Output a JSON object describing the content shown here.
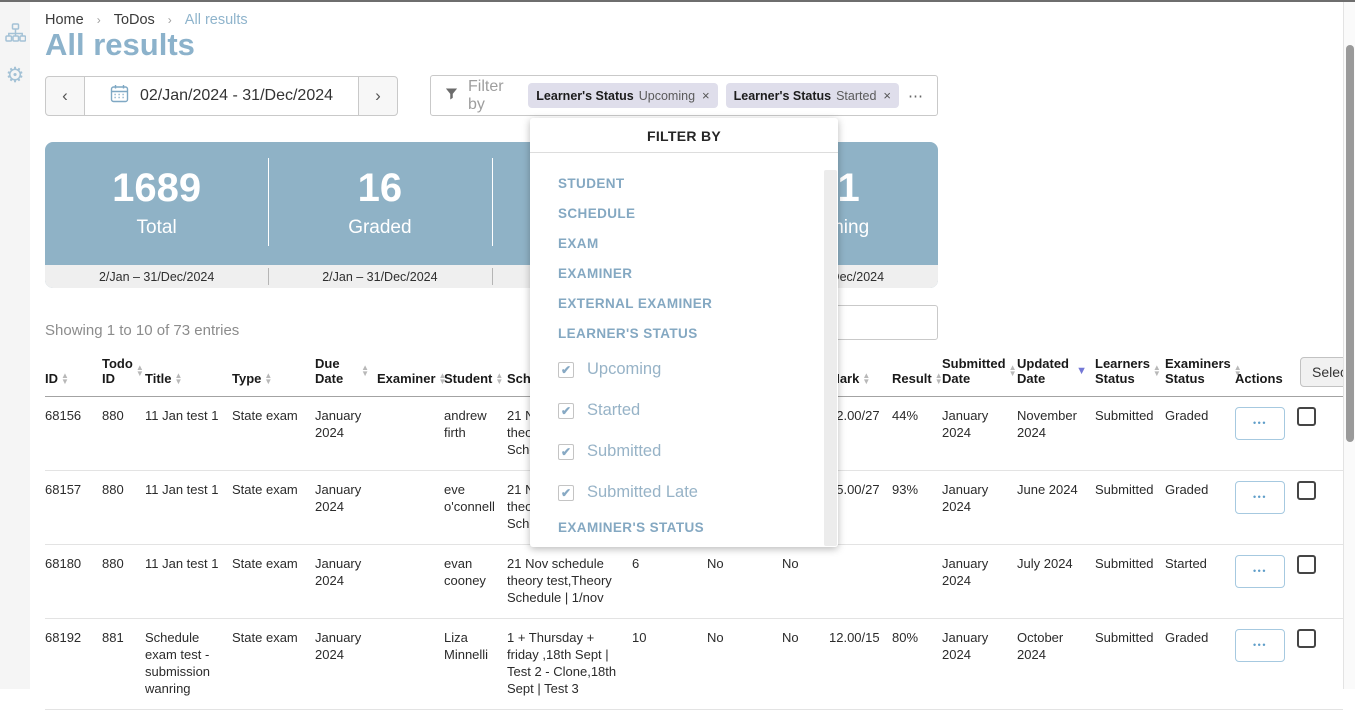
{
  "window": {
    "title": "All results"
  },
  "icons": {
    "prev": "‹",
    "next": "›",
    "breadcrumb_sep": "›",
    "remove": "×",
    "more": "⋯",
    "check": "✔",
    "row_actions": "•••",
    "sort_asc": "▲",
    "sort_desc": "▼",
    "gear": "⚙"
  },
  "sidebar": {
    "items": [
      {
        "icon": "sitemap-icon"
      },
      {
        "icon": "gear-icon"
      }
    ]
  },
  "breadcrumb": {
    "items": [
      "Home",
      "ToDos",
      "All results"
    ]
  },
  "header": {
    "title": "All results"
  },
  "toolbar": {
    "date_range": "02/Jan/2024 - 31/Dec/2024",
    "filter_label": "Filter by",
    "chips": [
      {
        "field": "Learner's Status",
        "value": "Upcoming"
      },
      {
        "field": "Learner's Status",
        "value": "Started"
      }
    ]
  },
  "stats": {
    "panels": [
      {
        "value": "1689",
        "label": "Total",
        "range": "2/Jan – 31/Dec/2024"
      },
      {
        "value": "16",
        "label": "Graded",
        "range": "2/Jan – 31/Dec/2024"
      },
      {
        "value": "",
        "label": "",
        "range": ""
      },
      {
        "value": "141",
        "label": "Upcoming",
        "range": "2/Jan – 31/Dec/2024"
      }
    ]
  },
  "filter_dropdown": {
    "title": "FILTER BY",
    "categories": [
      "STUDENT",
      "SCHEDULE",
      "EXAM",
      "EXAMINER",
      "EXTERNAL EXAMINER",
      "LEARNER'S STATUS"
    ],
    "learner_status_options": [
      {
        "label": "Upcoming",
        "checked": true
      },
      {
        "label": "Started",
        "checked": true
      },
      {
        "label": "Submitted",
        "checked": true
      },
      {
        "label": "Submitted Late",
        "checked": true
      }
    ],
    "footer_category": "EXAMINER'S STATUS"
  },
  "search": {
    "value": "",
    "placeholder": ""
  },
  "table": {
    "summary": "Showing 1 to 10 of 73 entries",
    "select_button": "Select",
    "columns": [
      {
        "label": "ID",
        "sort": "both"
      },
      {
        "label": "Todo ID",
        "sort": "both"
      },
      {
        "label": "Title",
        "sort": "both"
      },
      {
        "label": "Type",
        "sort": "both"
      },
      {
        "label": "Due Date",
        "sort": "both"
      },
      {
        "label": "Examiner",
        "sort": "both"
      },
      {
        "label": "Student",
        "sort": "both"
      },
      {
        "label": "Schedule",
        "sort": "both"
      },
      {
        "label": "",
        "sort": "none"
      },
      {
        "label": "",
        "sort": "none"
      },
      {
        "label": "",
        "sort": "none"
      },
      {
        "label": "Mark",
        "sort": "both"
      },
      {
        "label": "Result",
        "sort": "both"
      },
      {
        "label": "Submitted Date",
        "sort": "both"
      },
      {
        "label": "Updated Date",
        "sort": "desc"
      },
      {
        "label": "Learners Status",
        "sort": "both"
      },
      {
        "label": "Examiners Status",
        "sort": "both"
      },
      {
        "label": "Actions",
        "sort": "none"
      }
    ],
    "rows": [
      {
        "cells": [
          "68156",
          "880",
          "11 Jan test 1",
          "State exam",
          "January 2024",
          "",
          "andrew firth",
          "21 Nov schedule theory test,Theory Schedule | 1/nov",
          "",
          "",
          "",
          "12.00/27",
          "44%",
          "January 2024",
          "November 2024",
          "Submitted",
          "Graded"
        ]
      },
      {
        "cells": [
          "68157",
          "880",
          "11 Jan test 1",
          "State exam",
          "January 2024",
          "",
          "eve o'connell",
          "21 Nov schedule theory test,Theory Schedule | 1/nov",
          "",
          "",
          "",
          "25.00/27",
          "93%",
          "January 2024",
          "June 2024",
          "Submitted",
          "Graded"
        ]
      },
      {
        "cells": [
          "68180",
          "880",
          "11 Jan test 1",
          "State exam",
          "January 2024",
          "",
          "evan cooney",
          "21 Nov schedule theory test,Theory Schedule | 1/nov",
          "6",
          "No",
          "No",
          "",
          "",
          "January 2024",
          "July 2024",
          "Submitted",
          "Started"
        ]
      },
      {
        "cells": [
          "68192",
          "881",
          "Schedule exam test - submission wanring",
          "State exam",
          "January 2024",
          "",
          "Liza Minnelli",
          "1 + Thursday + friday ,18th Sept | Test 2 - Clone,18th Sept | Test 3",
          "10",
          "No",
          "No",
          "12.00/15",
          "80%",
          "January 2024",
          "October 2024",
          "Submitted",
          "Graded"
        ]
      }
    ]
  }
}
